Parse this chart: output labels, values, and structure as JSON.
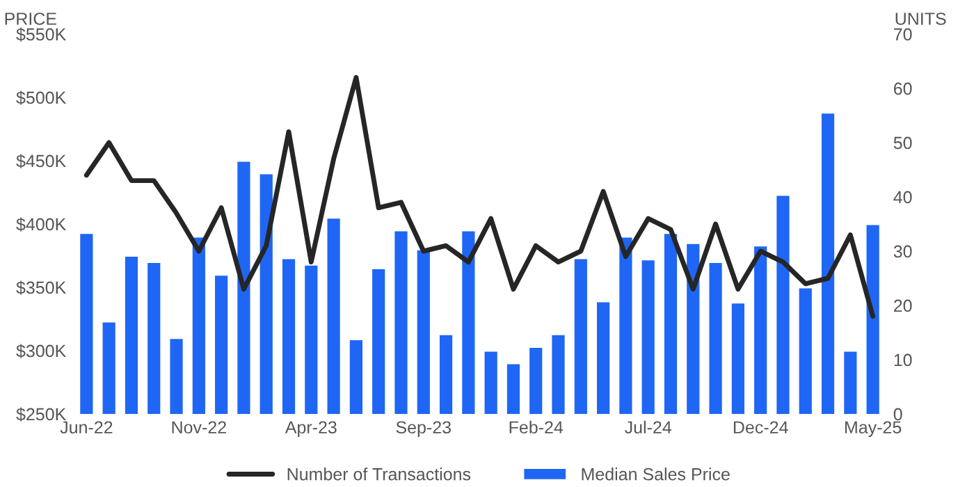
{
  "chart_data": {
    "type": "bar",
    "categories": [
      "Jun-22",
      null,
      null,
      null,
      null,
      "Nov-22",
      null,
      null,
      null,
      null,
      "Apr-23",
      null,
      null,
      null,
      null,
      "Sep-23",
      null,
      null,
      null,
      null,
      "Feb-24",
      null,
      null,
      null,
      null,
      "Jul-24",
      null,
      null,
      null,
      null,
      "Dec-24",
      null,
      null,
      null,
      null,
      "May-25"
    ],
    "series": [
      {
        "name": "Median Sales Price",
        "color": "#1f66f5",
        "values": [
          393000,
          323000,
          375000,
          370000,
          310000,
          390000,
          360000,
          450000,
          440000,
          373000,
          368000,
          405000,
          309000,
          365000,
          395000,
          380000,
          313000,
          395000,
          300000,
          290000,
          303000,
          313000,
          373000,
          339000,
          390000,
          372000,
          393000,
          385000,
          370000,
          338000,
          383000,
          423000,
          350000,
          488000,
          300000,
          400000
        ]
      },
      {
        "name": "Number of Transactions",
        "type": "line",
        "axis": "y2",
        "color": "#262626",
        "values": [
          44,
          50,
          43,
          43,
          37,
          30,
          38,
          23,
          31,
          52,
          28,
          47,
          62,
          38,
          39,
          30,
          31,
          28,
          36,
          23,
          31,
          28,
          30,
          41,
          29,
          36,
          34,
          23,
          35,
          23,
          30,
          28,
          24,
          25,
          33,
          18
        ]
      }
    ],
    "ylabel": "PRICE",
    "y2label": "UNITS",
    "ylim": [
      250000,
      550000
    ],
    "yticks": [
      {
        "value": 250000,
        "label": "$250K"
      },
      {
        "value": 300000,
        "label": "$300K"
      },
      {
        "value": 350000,
        "label": "$350K"
      },
      {
        "value": 400000,
        "label": "$400K"
      },
      {
        "value": 450000,
        "label": "$450K"
      },
      {
        "value": 500000,
        "label": "$500K"
      },
      {
        "value": 550000,
        "label": "$550K"
      }
    ],
    "y2lim": [
      0,
      70
    ],
    "y2ticks": [
      0,
      10,
      20,
      30,
      40,
      50,
      60,
      70
    ],
    "legend": "bottom",
    "grid": false
  }
}
